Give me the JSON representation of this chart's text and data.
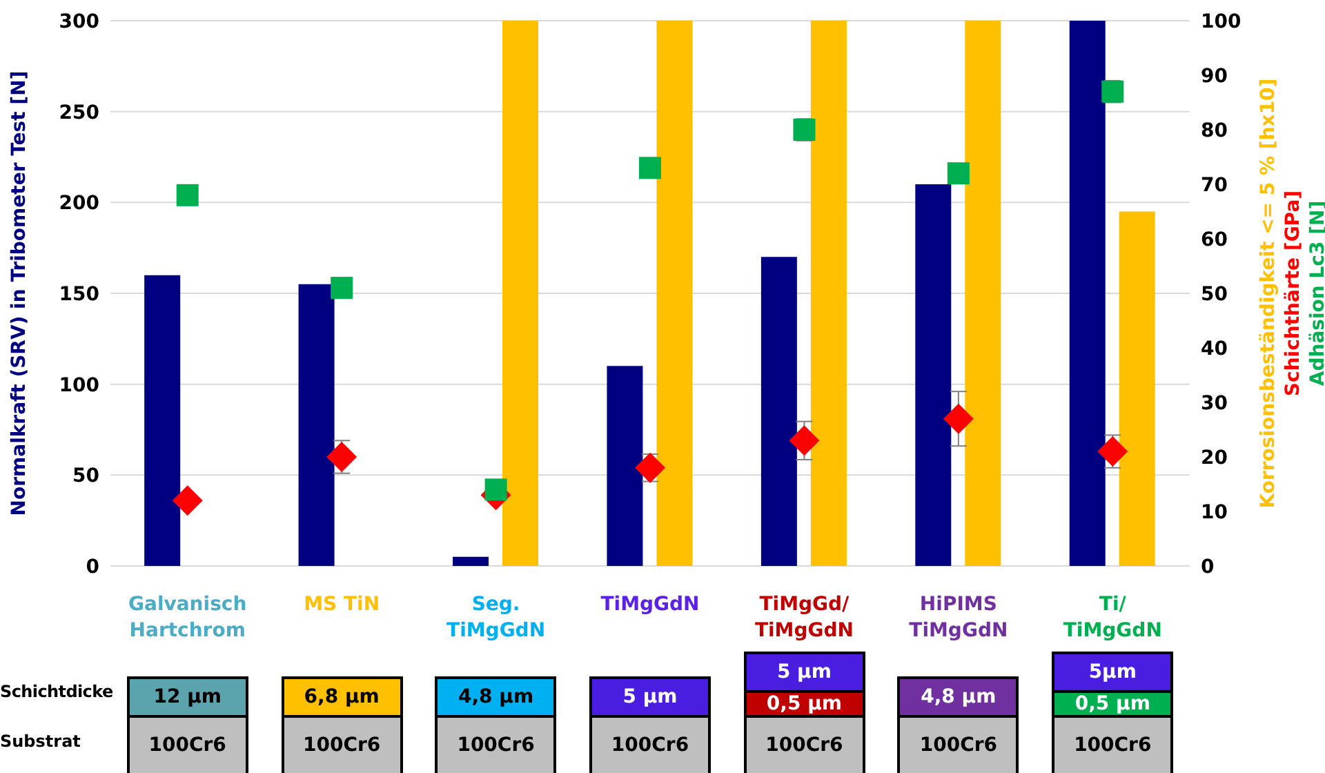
{
  "chart_data": {
    "type": "bar",
    "categories": [
      "Galvanisch\nHartchrom",
      "MS TiN",
      "Seg.\nTiMgGdN",
      "TiMgGdN",
      "TiMgGd/\nTiMgGdN",
      "HiPIMS\nTiMgGdN",
      "Ti/\nTiMgGdN"
    ],
    "ylabel": "Normalkraft (SRV) in Tribometer Test [N]",
    "ylim": [
      0,
      300
    ],
    "yticks": [
      0,
      50,
      100,
      150,
      200,
      250,
      300
    ],
    "y2lim": [
      0,
      100
    ],
    "y2ticks": [
      0,
      10,
      20,
      30,
      40,
      50,
      60,
      70,
      80,
      90,
      100
    ],
    "grid": "y",
    "series": [
      {
        "color": "#000080",
        "values": [
          160,
          155,
          5,
          110,
          170,
          210,
          300
        ]
      },
      {
        "type": "bar",
        "name": "Korrosionsbeständigkeit <= 5 % [hx10]",
        "color": "#ffc000",
        "axis": "y2",
        "values": [
          null,
          null,
          100,
          100,
          100,
          100,
          65
        ]
      },
      {
        "type": "scatter",
        "name": "Schichthärte [GPa]",
        "color": "#ff0000",
        "axis": "y2",
        "marker": "diamond",
        "values": [
          12,
          20,
          13,
          18,
          23,
          27,
          21
        ],
        "errors": [
          null,
          3,
          null,
          2.5,
          3.5,
          5,
          3
        ]
      },
      {
        "type": "scatter",
        "name": "Adhäsion Lc3 [N]",
        "color": "#00b050",
        "axis": "y2",
        "marker": "square",
        "values": [
          68,
          51,
          14,
          73,
          80,
          72,
          87
        ],
        "errors": [
          null,
          null,
          null,
          null,
          2,
          null,
          2
        ]
      }
    ],
    "annotations": [
      "Schichtdicke",
      "Substrat",
      "12 µm",
      "100Cr6",
      "6,8 µm",
      "100Cr6",
      "4,8 µm",
      "100Cr6",
      "5 µm",
      "100Cr6",
      "5 µm",
      "0,5 µm",
      "100Cr6",
      "4,8 µm",
      "100Cr6",
      "5µm",
      "0,5 µm",
      "100Cr6"
    ]
  }
}
